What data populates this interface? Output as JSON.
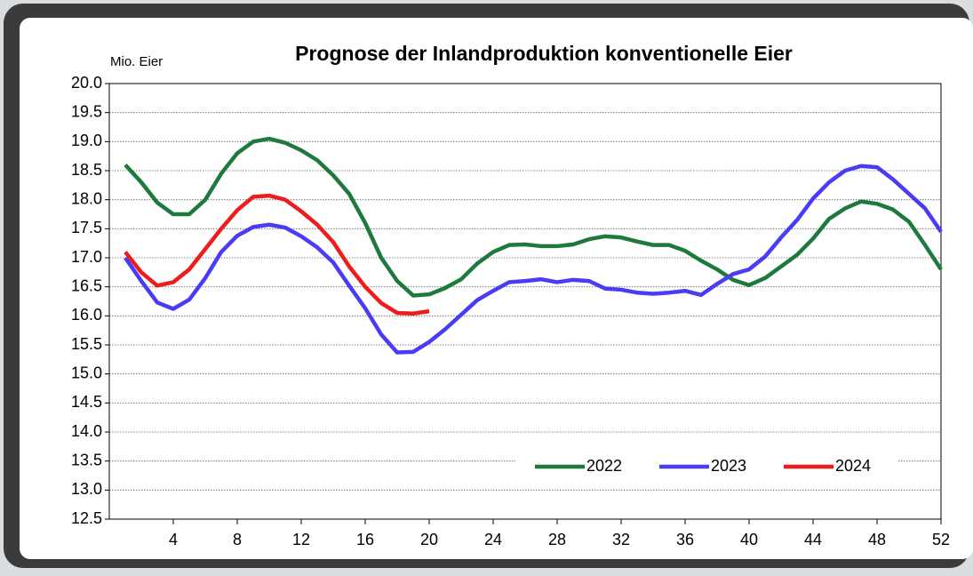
{
  "chart_data": {
    "type": "line",
    "title": "Prognose der Inlandproduktion konventionelle Eier",
    "y_label": "Mio. Eier",
    "x": [
      1,
      2,
      3,
      4,
      5,
      6,
      7,
      8,
      9,
      10,
      11,
      12,
      13,
      14,
      15,
      16,
      17,
      18,
      19,
      20,
      21,
      22,
      23,
      24,
      25,
      26,
      27,
      28,
      29,
      30,
      31,
      32,
      33,
      34,
      35,
      36,
      37,
      38,
      39,
      40,
      41,
      42,
      43,
      44,
      45,
      46,
      47,
      48,
      49,
      50,
      51,
      52
    ],
    "xlim": [
      0,
      52
    ],
    "xticks": [
      4,
      8,
      12,
      16,
      20,
      24,
      28,
      32,
      36,
      40,
      44,
      48,
      52
    ],
    "ylim": [
      12.5,
      20
    ],
    "yticks": [
      12.5,
      {
        "value": 13,
        "label": "13.0"
      },
      13.5,
      {
        "value": 14,
        "label": "14.0"
      },
      14.5,
      {
        "value": 15,
        "label": "15.0"
      },
      15.5,
      {
        "value": 16,
        "label": "16.0"
      },
      16.5,
      {
        "value": 17,
        "label": "17.0"
      },
      17.5,
      {
        "value": 18,
        "label": "18.0"
      },
      18.5,
      {
        "value": 19,
        "label": "19.0"
      },
      19.5,
      {
        "value": 20,
        "label": "20.0"
      }
    ],
    "grid": true,
    "legend": "lower right",
    "series": [
      {
        "name": "2022",
        "color": "#1e7a3c",
        "values": [
          18.6,
          18.3,
          17.95,
          17.75,
          17.75,
          18.0,
          18.45,
          18.8,
          19.0,
          19.05,
          18.98,
          18.85,
          18.68,
          18.42,
          18.1,
          17.6,
          17.0,
          16.6,
          16.35,
          16.37,
          16.48,
          16.63,
          16.9,
          17.1,
          17.22,
          17.23,
          17.2,
          17.2,
          17.23,
          17.32,
          17.37,
          17.35,
          17.28,
          17.22,
          17.22,
          17.12,
          16.95,
          16.8,
          16.62,
          16.53,
          16.65,
          16.85,
          17.05,
          17.33,
          17.67,
          17.85,
          17.97,
          17.93,
          17.83,
          17.62,
          17.22,
          16.8
        ]
      },
      {
        "name": "2023",
        "color": "#4a3cf5",
        "values": [
          17.0,
          16.6,
          16.23,
          16.12,
          16.28,
          16.65,
          17.1,
          17.38,
          17.53,
          17.57,
          17.52,
          17.37,
          17.18,
          16.92,
          16.52,
          16.13,
          15.68,
          15.37,
          15.38,
          15.55,
          15.77,
          16.02,
          16.27,
          16.43,
          16.58,
          16.6,
          16.63,
          16.58,
          16.62,
          16.6,
          16.47,
          16.45,
          16.4,
          16.38,
          16.4,
          16.43,
          16.36,
          16.55,
          16.72,
          16.8,
          17.02,
          17.35,
          17.65,
          18.02,
          18.3,
          18.5,
          18.58,
          18.56,
          18.35,
          18.1,
          17.85,
          17.45
        ]
      },
      {
        "name": "2024",
        "color": "#ee1c1c",
        "values": [
          17.1,
          16.75,
          16.52,
          16.58,
          16.8,
          17.15,
          17.5,
          17.82,
          18.05,
          18.07,
          18.0,
          17.8,
          17.57,
          17.27,
          16.85,
          16.5,
          16.22,
          16.05,
          16.04,
          16.08,
          null,
          null,
          null,
          null,
          null,
          null,
          null,
          null,
          null,
          null,
          null,
          null,
          null,
          null,
          null,
          null,
          null,
          null,
          null,
          null,
          null,
          null,
          null,
          null,
          null,
          null,
          null,
          null,
          null,
          null,
          null,
          null
        ]
      }
    ]
  }
}
